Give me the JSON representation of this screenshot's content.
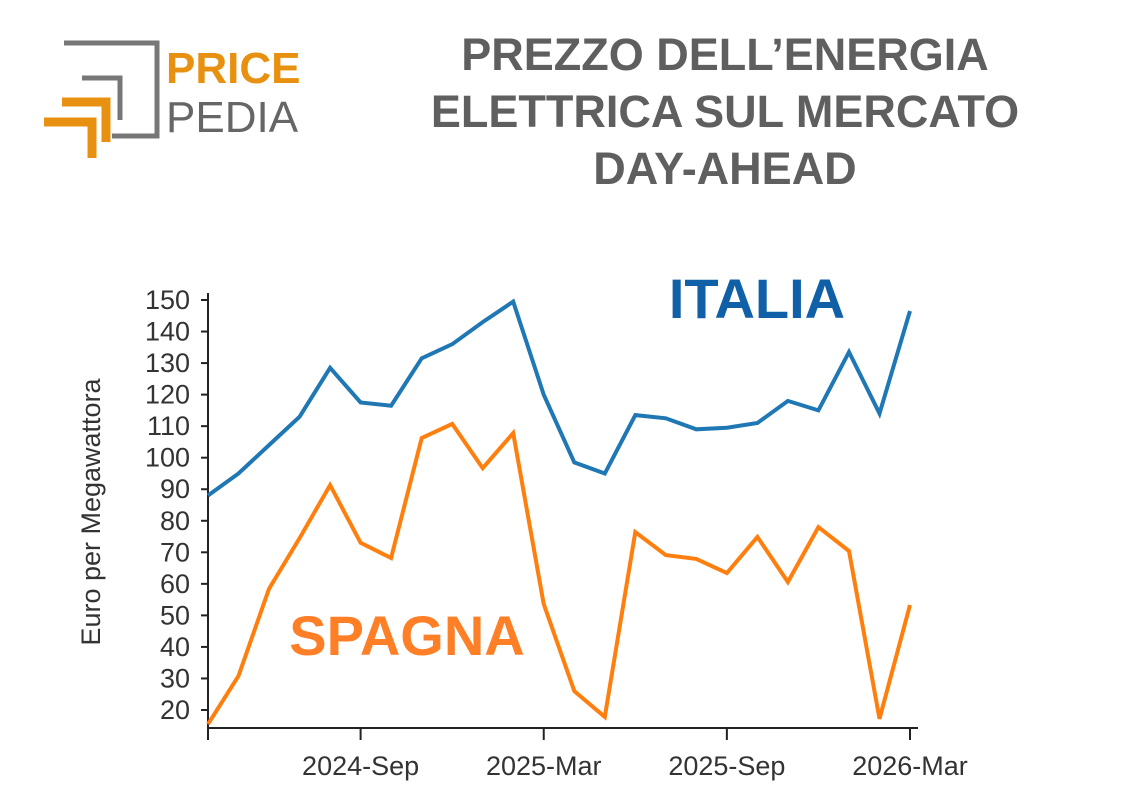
{
  "logo": {
    "text_top": "PRICE",
    "text_bottom": "PEDIA",
    "colors": {
      "orange": "#e8900f",
      "gray": "#666666"
    }
  },
  "title": [
    "PREZZO DELL’ENERGIA",
    "ELETTRICA SUL MERCATO",
    "DAY-AHEAD"
  ],
  "chart_data": {
    "type": "line",
    "title": "PREZZO DELL’ENERGIA ELETTRICA SUL MERCATO DAY-AHEAD",
    "xlabel": "",
    "ylabel": "Euro per Megawattora",
    "ylim": [
      14,
      152
    ],
    "yticks": [
      20,
      30,
      40,
      50,
      60,
      70,
      80,
      90,
      100,
      110,
      120,
      130,
      140,
      150
    ],
    "xtick_labels": [
      "2024-Sep",
      "2025-Mar",
      "2025-Sep",
      "2026-Mar"
    ],
    "grid": false,
    "x": [
      "2024-Apr",
      "2024-May",
      "2024-Jun",
      "2024-Jul",
      "2024-Aug",
      "2024-Sep",
      "2024-Oct",
      "2024-Nov",
      "2024-Dec",
      "2025-Jan",
      "2025-Feb",
      "2025-Mar",
      "2025-Apr",
      "2025-May",
      "2025-Jun",
      "2025-Jul",
      "2025-Aug",
      "2025-Sep",
      "2025-Oct",
      "2025-Nov",
      "2025-Dec",
      "2026-Jan",
      "2026-Feb",
      "2026-Mar"
    ],
    "series": [
      {
        "name": "ITALIA",
        "color": "#1f77b4",
        "label_color": "#1060a8",
        "values": [
          88,
          95,
          104,
          113,
          128.5,
          117.5,
          116.5,
          131.5,
          136,
          143,
          149.5,
          120,
          98.5,
          95,
          113.5,
          112.5,
          109,
          109.5,
          111,
          118,
          115,
          133.5,
          114,
          146.5
        ]
      },
      {
        "name": "SPAGNA",
        "color": "#ff7f0e",
        "label_color": "#ff7f27",
        "values": [
          15.5,
          30.8,
          58.4,
          74.5,
          91.3,
          73,
          68.2,
          106.2,
          110.7,
          96.7,
          107.8,
          53.6,
          26,
          17.8,
          76.4,
          69.1,
          67.9,
          63.4,
          74.9,
          60.6,
          78,
          70.4,
          17.2,
          53.3
        ]
      }
    ]
  }
}
